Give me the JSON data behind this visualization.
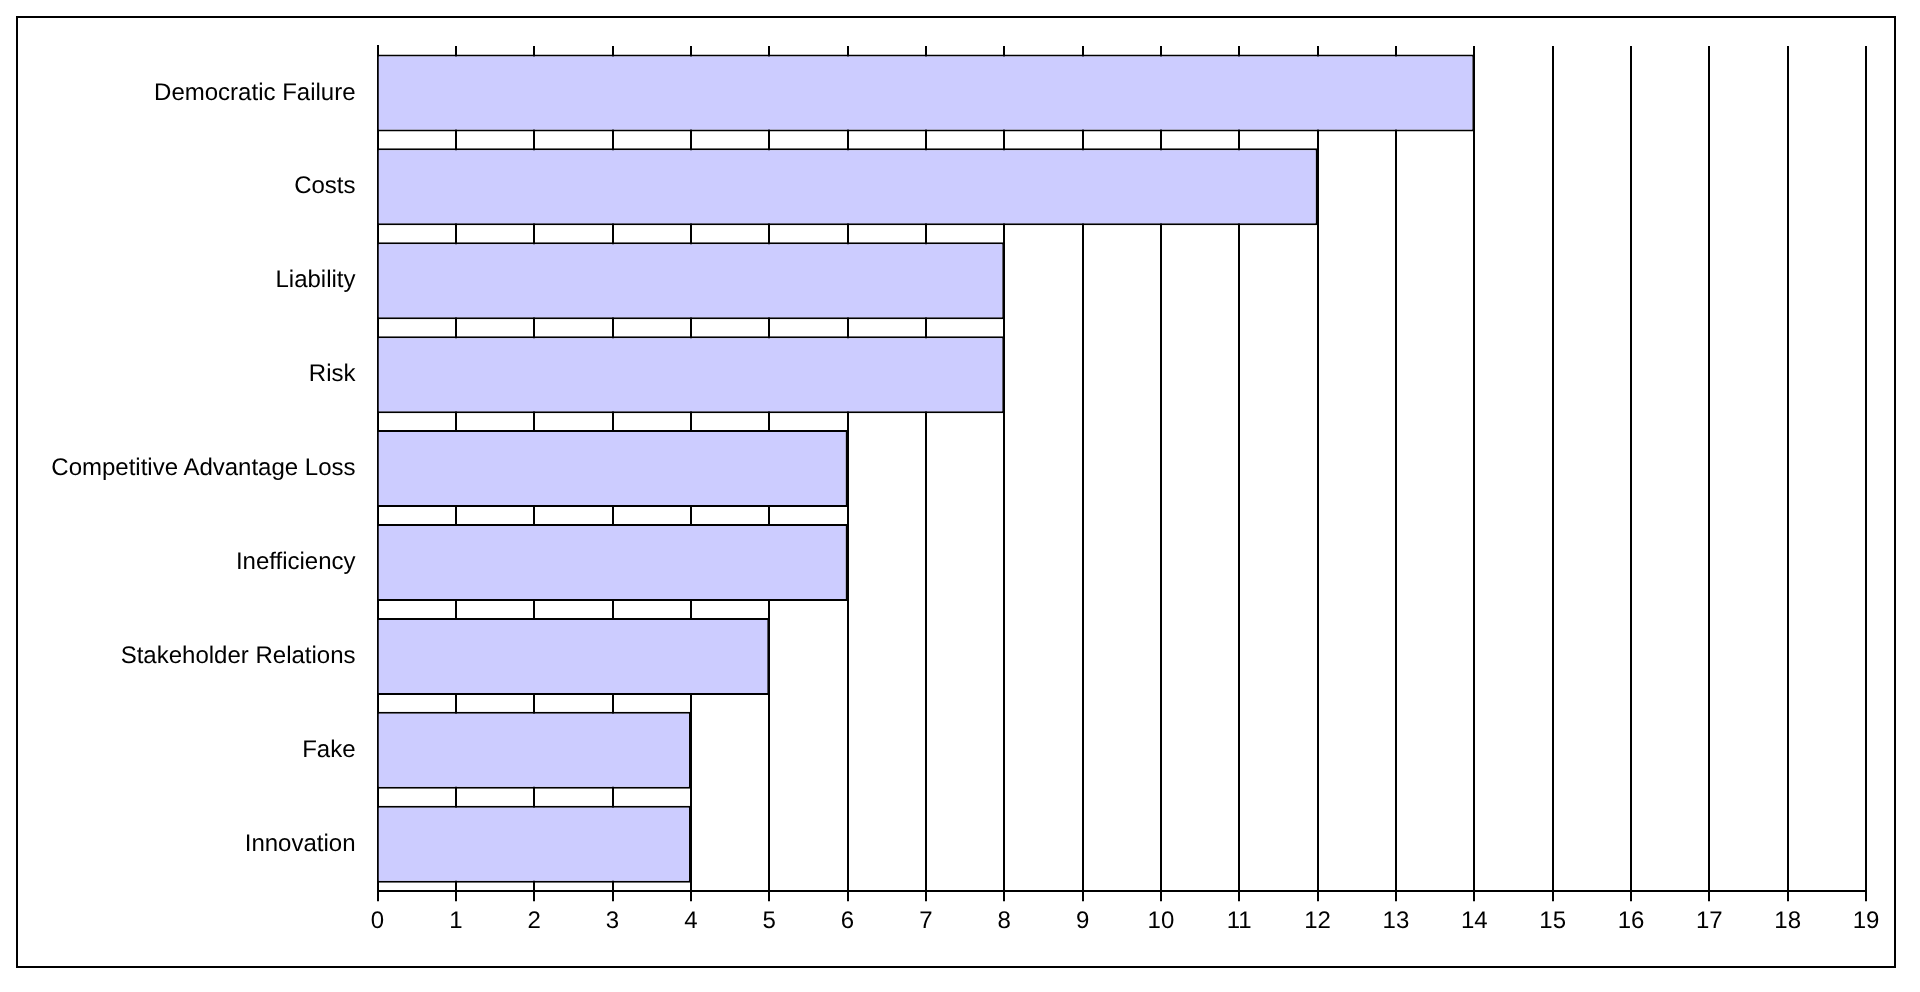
{
  "chart_data": {
    "type": "bar",
    "orientation": "horizontal",
    "categories": [
      "Democratic Failure",
      "Costs",
      "Liability",
      "Risk",
      "Competitive Advantage Loss",
      "Inefficiency",
      "Stakeholder Relations",
      "Fake",
      "Innovation"
    ],
    "values": [
      14,
      12,
      8,
      8,
      6,
      6,
      5,
      4,
      4
    ],
    "color": "#ccccff",
    "xlim": [
      0,
      19
    ],
    "xticks": [
      0,
      1,
      2,
      3,
      4,
      5,
      6,
      7,
      8,
      9,
      10,
      11,
      12,
      13,
      14,
      15,
      16,
      17,
      18,
      19
    ],
    "grid": "x",
    "legend": false
  }
}
